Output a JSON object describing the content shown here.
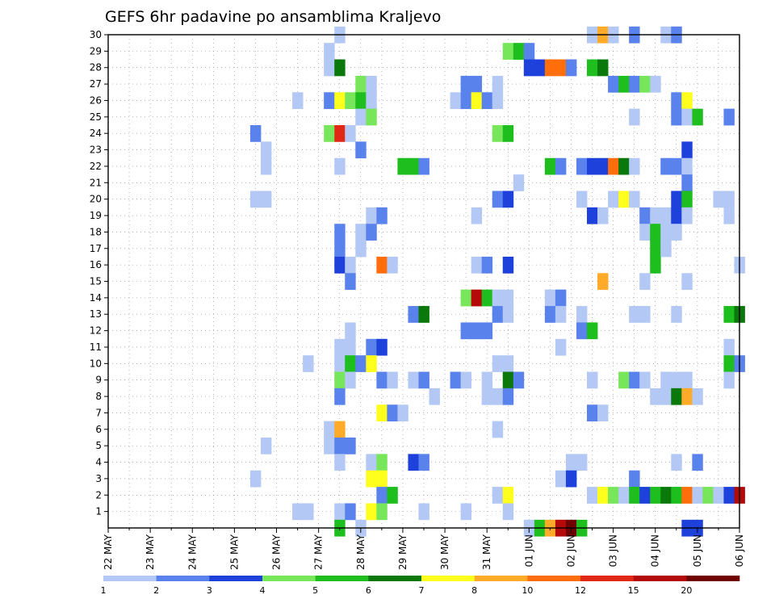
{
  "chart_data": {
    "type": "heatmap",
    "title": "GEFS 6hr padavine po ansamblima Kraljevo",
    "xlabel": "",
    "ylabel": "",
    "x_range_slots": [
      0,
      60
    ],
    "y_range": [
      0,
      30
    ],
    "grid": true,
    "y_ticks": [
      "1",
      "2",
      "3",
      "4",
      "5",
      "6",
      "7",
      "8",
      "9",
      "10",
      "11",
      "12",
      "13",
      "14",
      "15",
      "16",
      "17",
      "18",
      "19",
      "20",
      "21",
      "22",
      "23",
      "24",
      "25",
      "26",
      "27",
      "28",
      "29",
      "30"
    ],
    "x_ticks": [
      {
        "label": "22 MAY",
        "slot": 0
      },
      {
        "label": "23 MAY",
        "slot": 4
      },
      {
        "label": "24 MAY",
        "slot": 8
      },
      {
        "label": "25 MAY",
        "slot": 12
      },
      {
        "label": "26 MAY",
        "slot": 16
      },
      {
        "label": "27 MAY",
        "slot": 20
      },
      {
        "label": "28 MAY",
        "slot": 24
      },
      {
        "label": "29 MAY",
        "slot": 28
      },
      {
        "label": "30 MAY",
        "slot": 32
      },
      {
        "label": "31 MAY",
        "slot": 36
      },
      {
        "label": "01 JUN",
        "slot": 40
      },
      {
        "label": "02 JUN",
        "slot": 44
      },
      {
        "label": "03 JUN",
        "slot": 48
      },
      {
        "label": "04 JUN",
        "slot": 52
      },
      {
        "label": "05 JUN",
        "slot": 56
      },
      {
        "label": "06 JUN",
        "slot": 60
      }
    ],
    "legend": {
      "placement": "bottom",
      "labels": [
        "1",
        "2",
        "3",
        "4",
        "5",
        "6",
        "7",
        "8",
        "10",
        "12",
        "15",
        "20"
      ],
      "colors": [
        "#b4c8f5",
        "#5a82ec",
        "#1e41dc",
        "#78e65a",
        "#1ebe1e",
        "#0a780a",
        "#ffff1e",
        "#ffaa28",
        "#ff6e0a",
        "#e12814",
        "#b40a0a",
        "#6e0000"
      ]
    },
    "cells": [
      [
        30,
        22,
        1
      ],
      [
        30,
        46,
        1
      ],
      [
        30,
        47,
        8
      ],
      [
        30,
        48,
        1
      ],
      [
        30,
        50,
        2
      ],
      [
        30,
        53,
        1
      ],
      [
        30,
        54,
        2
      ],
      [
        29,
        21,
        1
      ],
      [
        29,
        38,
        4
      ],
      [
        29,
        39,
        5
      ],
      [
        29,
        40,
        2
      ],
      [
        28,
        21,
        1
      ],
      [
        28,
        22,
        6
      ],
      [
        28,
        40,
        3
      ],
      [
        28,
        41,
        3
      ],
      [
        28,
        42,
        9
      ],
      [
        28,
        43,
        9
      ],
      [
        28,
        44,
        2
      ],
      [
        28,
        46,
        5
      ],
      [
        28,
        47,
        6
      ],
      [
        27,
        24,
        4
      ],
      [
        27,
        25,
        1
      ],
      [
        27,
        34,
        2
      ],
      [
        27,
        35,
        2
      ],
      [
        27,
        37,
        1
      ],
      [
        27,
        48,
        2
      ],
      [
        27,
        49,
        5
      ],
      [
        27,
        50,
        2
      ],
      [
        27,
        51,
        4
      ],
      [
        27,
        52,
        1
      ],
      [
        26,
        18,
        1
      ],
      [
        26,
        21,
        2
      ],
      [
        26,
        22,
        7
      ],
      [
        26,
        23,
        4
      ],
      [
        26,
        24,
        5
      ],
      [
        26,
        25,
        1
      ],
      [
        26,
        33,
        1
      ],
      [
        26,
        34,
        2
      ],
      [
        26,
        35,
        7
      ],
      [
        26,
        36,
        2
      ],
      [
        26,
        37,
        1
      ],
      [
        26,
        54,
        2
      ],
      [
        26,
        55,
        7
      ],
      [
        25,
        24,
        1
      ],
      [
        25,
        25,
        4
      ],
      [
        25,
        50,
        1
      ],
      [
        25,
        54,
        2
      ],
      [
        25,
        55,
        1
      ],
      [
        25,
        56,
        5
      ],
      [
        25,
        59,
        2
      ],
      [
        24,
        14,
        2
      ],
      [
        24,
        21,
        4
      ],
      [
        24,
        22,
        10
      ],
      [
        24,
        23,
        1
      ],
      [
        24,
        37,
        4
      ],
      [
        24,
        38,
        5
      ],
      [
        23,
        15,
        1
      ],
      [
        23,
        24,
        2
      ],
      [
        23,
        55,
        3
      ],
      [
        22,
        15,
        1
      ],
      [
        22,
        22,
        1
      ],
      [
        22,
        28,
        5
      ],
      [
        22,
        29,
        5
      ],
      [
        22,
        30,
        2
      ],
      [
        22,
        42,
        5
      ],
      [
        22,
        43,
        2
      ],
      [
        22,
        45,
        2
      ],
      [
        22,
        46,
        3
      ],
      [
        22,
        47,
        3
      ],
      [
        22,
        48,
        9
      ],
      [
        22,
        49,
        6
      ],
      [
        22,
        50,
        1
      ],
      [
        22,
        53,
        2
      ],
      [
        22,
        54,
        2
      ],
      [
        22,
        55,
        1
      ],
      [
        21,
        39,
        1
      ],
      [
        21,
        55,
        2
      ],
      [
        20,
        14,
        1
      ],
      [
        20,
        15,
        1
      ],
      [
        20,
        37,
        2
      ],
      [
        20,
        38,
        3
      ],
      [
        20,
        45,
        1
      ],
      [
        20,
        48,
        1
      ],
      [
        20,
        49,
        7
      ],
      [
        20,
        50,
        1
      ],
      [
        20,
        54,
        3
      ],
      [
        20,
        55,
        5
      ],
      [
        20,
        58,
        1
      ],
      [
        20,
        59,
        1
      ],
      [
        19,
        25,
        1
      ],
      [
        19,
        26,
        2
      ],
      [
        19,
        35,
        1
      ],
      [
        19,
        46,
        3
      ],
      [
        19,
        47,
        1
      ],
      [
        19,
        51,
        2
      ],
      [
        19,
        52,
        1
      ],
      [
        19,
        53,
        1
      ],
      [
        19,
        54,
        3
      ],
      [
        19,
        55,
        1
      ],
      [
        19,
        59,
        1
      ],
      [
        18,
        22,
        2
      ],
      [
        18,
        24,
        1
      ],
      [
        18,
        25,
        2
      ],
      [
        18,
        51,
        1
      ],
      [
        18,
        52,
        5
      ],
      [
        18,
        53,
        1
      ],
      [
        18,
        54,
        1
      ],
      [
        17,
        22,
        2
      ],
      [
        17,
        24,
        1
      ],
      [
        17,
        52,
        5
      ],
      [
        17,
        53,
        1
      ],
      [
        16,
        22,
        3
      ],
      [
        16,
        23,
        1
      ],
      [
        16,
        26,
        9
      ],
      [
        16,
        27,
        1
      ],
      [
        16,
        35,
        1
      ],
      [
        16,
        36,
        2
      ],
      [
        16,
        38,
        3
      ],
      [
        16,
        52,
        5
      ],
      [
        16,
        60,
        1
      ],
      [
        15,
        23,
        2
      ],
      [
        15,
        47,
        8
      ],
      [
        15,
        51,
        1
      ],
      [
        15,
        55,
        1
      ],
      [
        14,
        34,
        4
      ],
      [
        14,
        35,
        11
      ],
      [
        14,
        36,
        5
      ],
      [
        14,
        37,
        1
      ],
      [
        14,
        38,
        1
      ],
      [
        14,
        42,
        1
      ],
      [
        14,
        43,
        2
      ],
      [
        13,
        29,
        2
      ],
      [
        13,
        30,
        6
      ],
      [
        13,
        37,
        2
      ],
      [
        13,
        38,
        1
      ],
      [
        13,
        42,
        2
      ],
      [
        13,
        43,
        1
      ],
      [
        13,
        45,
        1
      ],
      [
        13,
        50,
        1
      ],
      [
        13,
        51,
        1
      ],
      [
        13,
        54,
        1
      ],
      [
        13,
        59,
        5
      ],
      [
        13,
        60,
        6
      ],
      [
        12,
        23,
        1
      ],
      [
        12,
        34,
        2
      ],
      [
        12,
        35,
        2
      ],
      [
        12,
        36,
        2
      ],
      [
        12,
        45,
        2
      ],
      [
        12,
        46,
        5
      ],
      [
        11,
        22,
        1
      ],
      [
        11,
        23,
        1
      ],
      [
        11,
        25,
        2
      ],
      [
        11,
        26,
        3
      ],
      [
        11,
        43,
        1
      ],
      [
        11,
        59,
        1
      ],
      [
        10,
        19,
        1
      ],
      [
        10,
        22,
        1
      ],
      [
        10,
        23,
        5
      ],
      [
        10,
        24,
        2
      ],
      [
        10,
        25,
        7
      ],
      [
        10,
        37,
        1
      ],
      [
        10,
        38,
        1
      ],
      [
        10,
        59,
        5
      ],
      [
        10,
        60,
        2
      ],
      [
        9,
        22,
        4
      ],
      [
        9,
        23,
        1
      ],
      [
        9,
        26,
        2
      ],
      [
        9,
        27,
        1
      ],
      [
        9,
        29,
        1
      ],
      [
        9,
        30,
        2
      ],
      [
        9,
        33,
        2
      ],
      [
        9,
        34,
        1
      ],
      [
        9,
        36,
        1
      ],
      [
        9,
        38,
        6
      ],
      [
        9,
        39,
        2
      ],
      [
        9,
        46,
        1
      ],
      [
        9,
        49,
        4
      ],
      [
        9,
        50,
        2
      ],
      [
        9,
        51,
        1
      ],
      [
        9,
        53,
        1
      ],
      [
        9,
        54,
        1
      ],
      [
        9,
        55,
        1
      ],
      [
        9,
        59,
        1
      ],
      [
        8,
        22,
        2
      ],
      [
        8,
        31,
        1
      ],
      [
        8,
        36,
        1
      ],
      [
        8,
        37,
        1
      ],
      [
        8,
        38,
        2
      ],
      [
        8,
        52,
        1
      ],
      [
        8,
        53,
        1
      ],
      [
        8,
        54,
        6
      ],
      [
        8,
        55,
        8
      ],
      [
        8,
        56,
        1
      ],
      [
        7,
        26,
        7
      ],
      [
        7,
        27,
        2
      ],
      [
        7,
        28,
        1
      ],
      [
        7,
        46,
        2
      ],
      [
        7,
        47,
        1
      ],
      [
        6,
        21,
        1
      ],
      [
        6,
        22,
        8
      ],
      [
        6,
        37,
        1
      ],
      [
        5,
        15,
        1
      ],
      [
        5,
        21,
        1
      ],
      [
        5,
        22,
        2
      ],
      [
        5,
        23,
        2
      ],
      [
        4,
        22,
        1
      ],
      [
        4,
        25,
        1
      ],
      [
        4,
        26,
        4
      ],
      [
        4,
        29,
        3
      ],
      [
        4,
        30,
        2
      ],
      [
        4,
        44,
        1
      ],
      [
        4,
        45,
        1
      ],
      [
        4,
        54,
        1
      ],
      [
        4,
        56,
        2
      ],
      [
        3,
        14,
        1
      ],
      [
        3,
        25,
        7
      ],
      [
        3,
        26,
        7
      ],
      [
        3,
        43,
        1
      ],
      [
        3,
        44,
        3
      ],
      [
        3,
        50,
        2
      ],
      [
        2,
        26,
        2
      ],
      [
        2,
        27,
        5
      ],
      [
        2,
        37,
        1
      ],
      [
        2,
        38,
        7
      ],
      [
        2,
        46,
        1
      ],
      [
        2,
        47,
        7
      ],
      [
        2,
        48,
        4
      ],
      [
        2,
        49,
        1
      ],
      [
        2,
        50,
        5
      ],
      [
        2,
        51,
        3
      ],
      [
        2,
        52,
        5
      ],
      [
        2,
        53,
        6
      ],
      [
        2,
        54,
        5
      ],
      [
        2,
        55,
        9
      ],
      [
        2,
        56,
        1
      ],
      [
        2,
        57,
        4
      ],
      [
        2,
        58,
        1
      ],
      [
        2,
        59,
        3
      ],
      [
        2,
        60,
        11
      ],
      [
        1,
        18,
        1
      ],
      [
        1,
        19,
        1
      ],
      [
        1,
        22,
        1
      ],
      [
        1,
        23,
        2
      ],
      [
        1,
        25,
        7
      ],
      [
        1,
        26,
        4
      ],
      [
        1,
        30,
        1
      ],
      [
        1,
        34,
        1
      ],
      [
        1,
        38,
        1
      ],
      [
        0,
        22,
        5
      ],
      [
        0,
        24,
        1
      ],
      [
        0,
        40,
        1
      ],
      [
        0,
        41,
        5
      ],
      [
        0,
        42,
        8
      ],
      [
        0,
        43,
        11
      ],
      [
        0,
        44,
        12
      ],
      [
        0,
        45,
        5
      ],
      [
        0,
        55,
        3
      ],
      [
        0,
        56,
        3
      ]
    ]
  }
}
